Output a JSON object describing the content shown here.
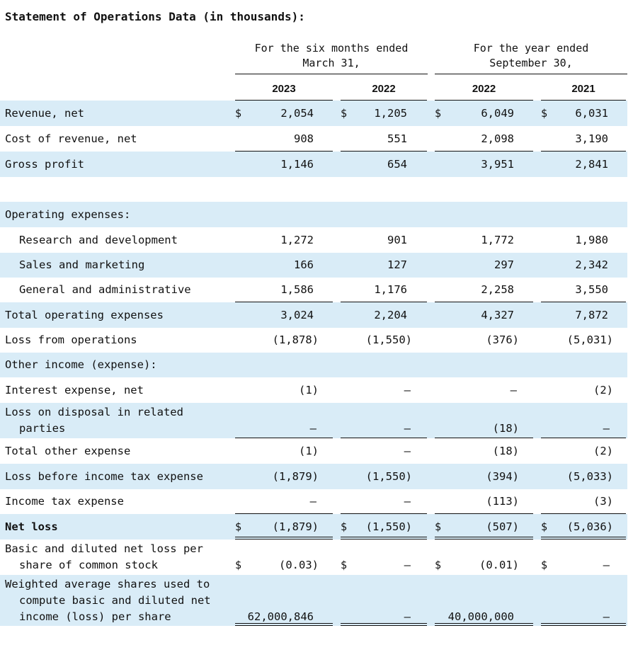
{
  "title": "Statement of Operations Data (in thousands):",
  "headers": {
    "group1": [
      "For the six months ended",
      "March 31,"
    ],
    "group2": [
      "For the year ended",
      "September  30,"
    ],
    "years": [
      "2023",
      "2022",
      "2022",
      "2021"
    ]
  },
  "currency_symbol": "$",
  "dash": "—",
  "rows": [
    {
      "label": [
        "Revenue, net"
      ],
      "values": [
        "2,054",
        "1,205",
        "6,049",
        "6,031"
      ]
    },
    {
      "label": [
        "Cost of revenue, net"
      ],
      "values": [
        "908",
        "551",
        "2,098",
        "3,190"
      ]
    },
    {
      "label": [
        "Gross profit"
      ],
      "values": [
        "1,146",
        "654",
        "3,951",
        "2,841"
      ]
    },
    {
      "label": [
        "Operating expenses:"
      ],
      "values": []
    },
    {
      "label": [
        "Research and development"
      ],
      "values": [
        "1,272",
        "901",
        "1,772",
        "1,980"
      ]
    },
    {
      "label": [
        "Sales and marketing"
      ],
      "values": [
        "166",
        "127",
        "297",
        "2,342"
      ]
    },
    {
      "label": [
        "General and administrative"
      ],
      "values": [
        "1,586",
        "1,176",
        "2,258",
        "3,550"
      ]
    },
    {
      "label": [
        "Total operating expenses"
      ],
      "values": [
        "3,024",
        "2,204",
        "4,327",
        "7,872"
      ]
    },
    {
      "label": [
        "Loss from operations"
      ],
      "values": [
        "(1,878)",
        "(1,550)",
        "(376)",
        "(5,031)"
      ]
    },
    {
      "label": [
        "Other income (expense):"
      ],
      "values": []
    },
    {
      "label": [
        "Interest expense, net"
      ],
      "values": [
        "(1)",
        "—",
        "—",
        "(2)"
      ]
    },
    {
      "label": [
        "Loss on disposal in related",
        "parties"
      ],
      "values": [
        "—",
        "—",
        "(18)",
        "—"
      ]
    },
    {
      "label": [
        "Total other expense"
      ],
      "values": [
        "(1)",
        "—",
        "(18)",
        "(2)"
      ]
    },
    {
      "label": [
        "Loss before income tax expense"
      ],
      "values": [
        "(1,879)",
        "(1,550)",
        "(394)",
        "(5,033)"
      ]
    },
    {
      "label": [
        "Income tax expense"
      ],
      "values": [
        "—",
        "—",
        "(113)",
        "(3)"
      ]
    },
    {
      "label": [
        "Net loss"
      ],
      "values": [
        "(1,879)",
        "(1,550)",
        "(507)",
        "(5,036)"
      ]
    },
    {
      "label": [
        "Basic and diluted net loss per",
        "share of common stock"
      ],
      "values": [
        "(0.03)",
        "—",
        "(0.01)",
        "—"
      ]
    },
    {
      "label": [
        "Weighted average shares used to",
        "compute basic and diluted net",
        "income (loss) per share"
      ],
      "values": [
        "62,000,846",
        "—",
        "40,000,000",
        "—"
      ]
    }
  ]
}
